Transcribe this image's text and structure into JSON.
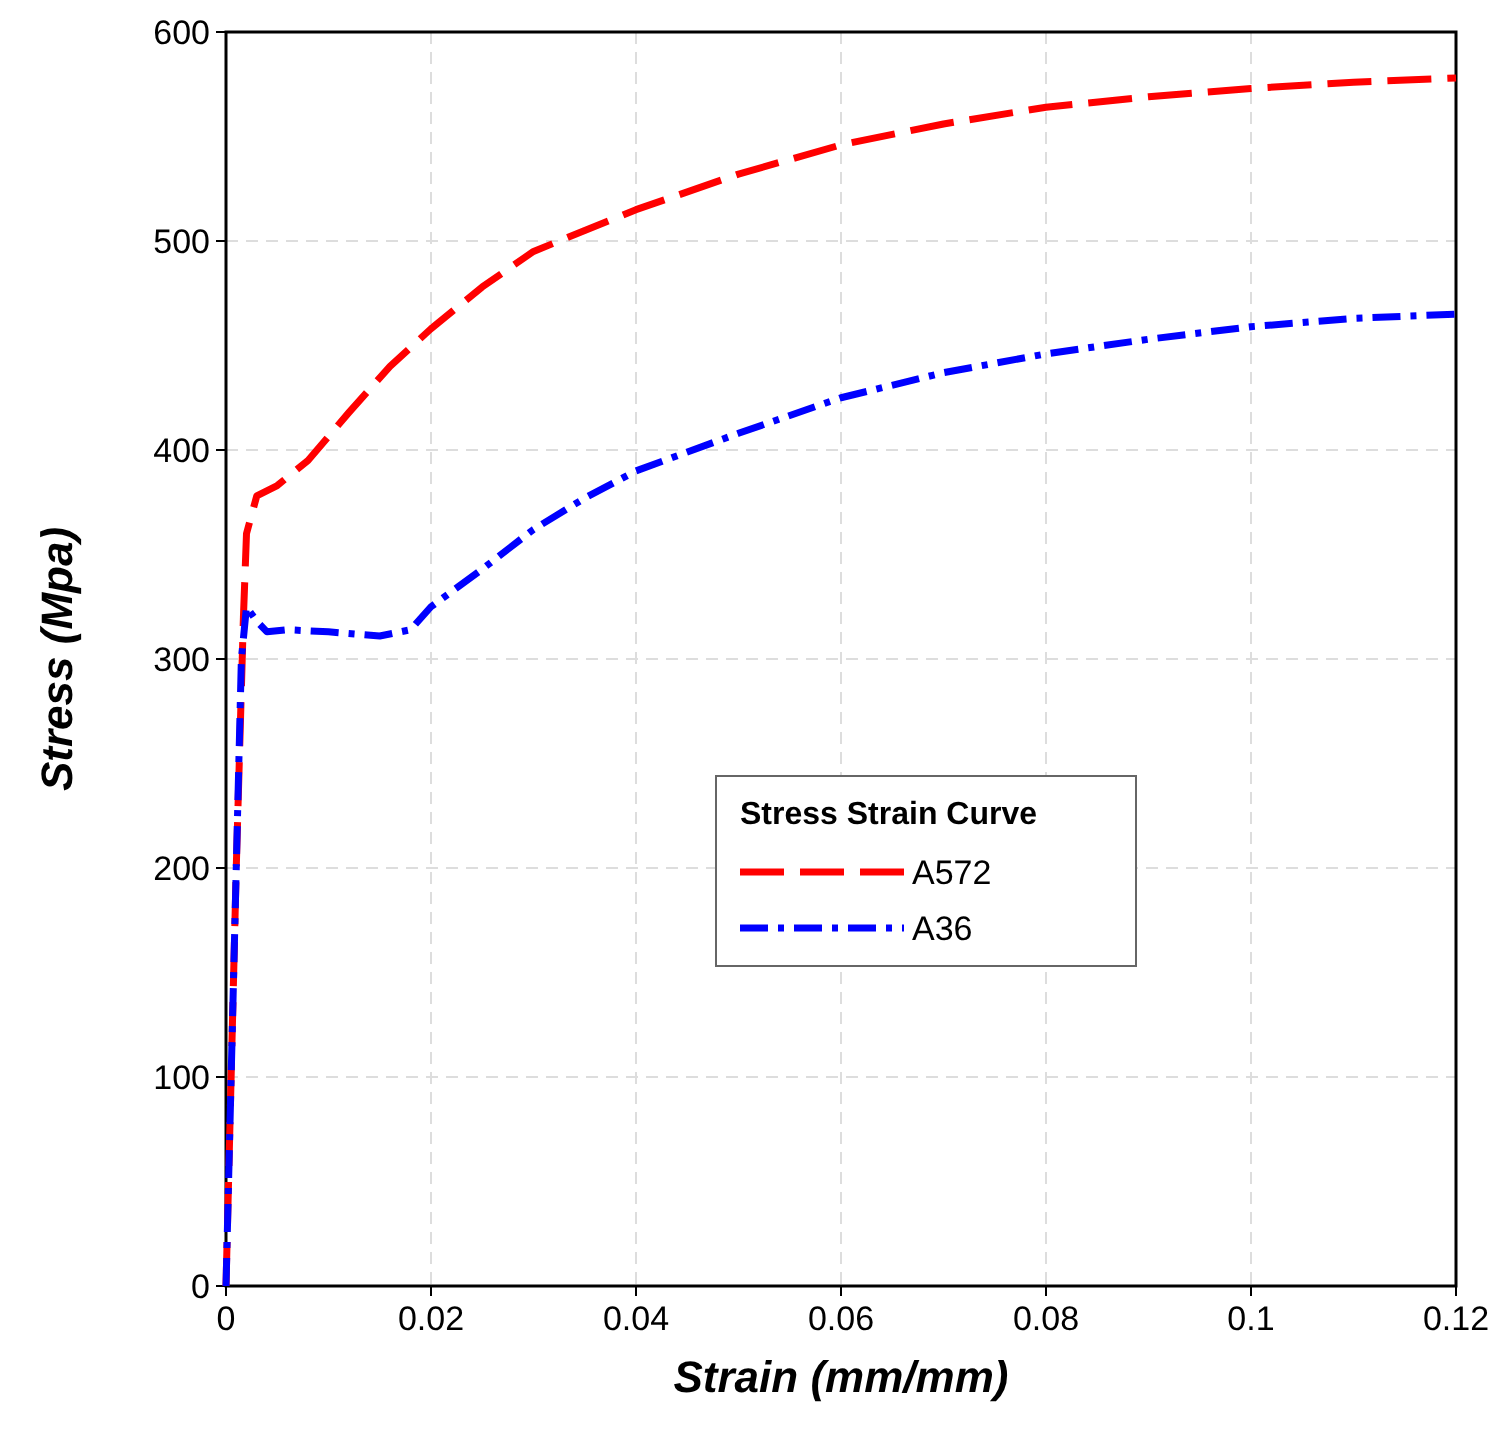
{
  "chart_data": {
    "type": "line",
    "xlabel": "Strain (mm/mm)",
    "ylabel": "Stress (Mpa)",
    "legend_title": "Stress Strain Curve",
    "legend": "right",
    "grid": true,
    "xlim": [
      0,
      0.12
    ],
    "ylim": [
      0,
      600
    ],
    "xticks": [
      0,
      0.02,
      0.04,
      0.06,
      0.08,
      0.1,
      0.12
    ],
    "yticks": [
      0,
      100,
      200,
      300,
      400,
      500,
      600
    ],
    "marker": "none",
    "series": [
      {
        "name": "A572",
        "color": "#ff0000",
        "line_style": "dashed",
        "x": [
          0,
          0.001,
          0.0017,
          0.002,
          0.003,
          0.005,
          0.008,
          0.012,
          0.016,
          0.02,
          0.025,
          0.03,
          0.035,
          0.04,
          0.05,
          0.06,
          0.07,
          0.08,
          0.09,
          0.1,
          0.11,
          0.12
        ],
        "values": [
          0,
          200,
          320,
          360,
          378,
          383,
          395,
          418,
          440,
          458,
          478,
          495,
          505,
          515,
          532,
          546,
          556,
          564,
          569,
          573,
          576,
          578
        ]
      },
      {
        "name": "A36",
        "color": "#0000ff",
        "line_style": "dashdot",
        "x": [
          0,
          0.0015,
          0.002,
          0.003,
          0.004,
          0.006,
          0.01,
          0.015,
          0.018,
          0.02,
          0.025,
          0.03,
          0.035,
          0.04,
          0.05,
          0.06,
          0.07,
          0.08,
          0.09,
          0.1,
          0.11,
          0.12
        ],
        "values": [
          0,
          300,
          325,
          318,
          313,
          314,
          313,
          311,
          314,
          325,
          343,
          362,
          377,
          390,
          408,
          425,
          437,
          446,
          453,
          459,
          463,
          465
        ]
      }
    ]
  }
}
